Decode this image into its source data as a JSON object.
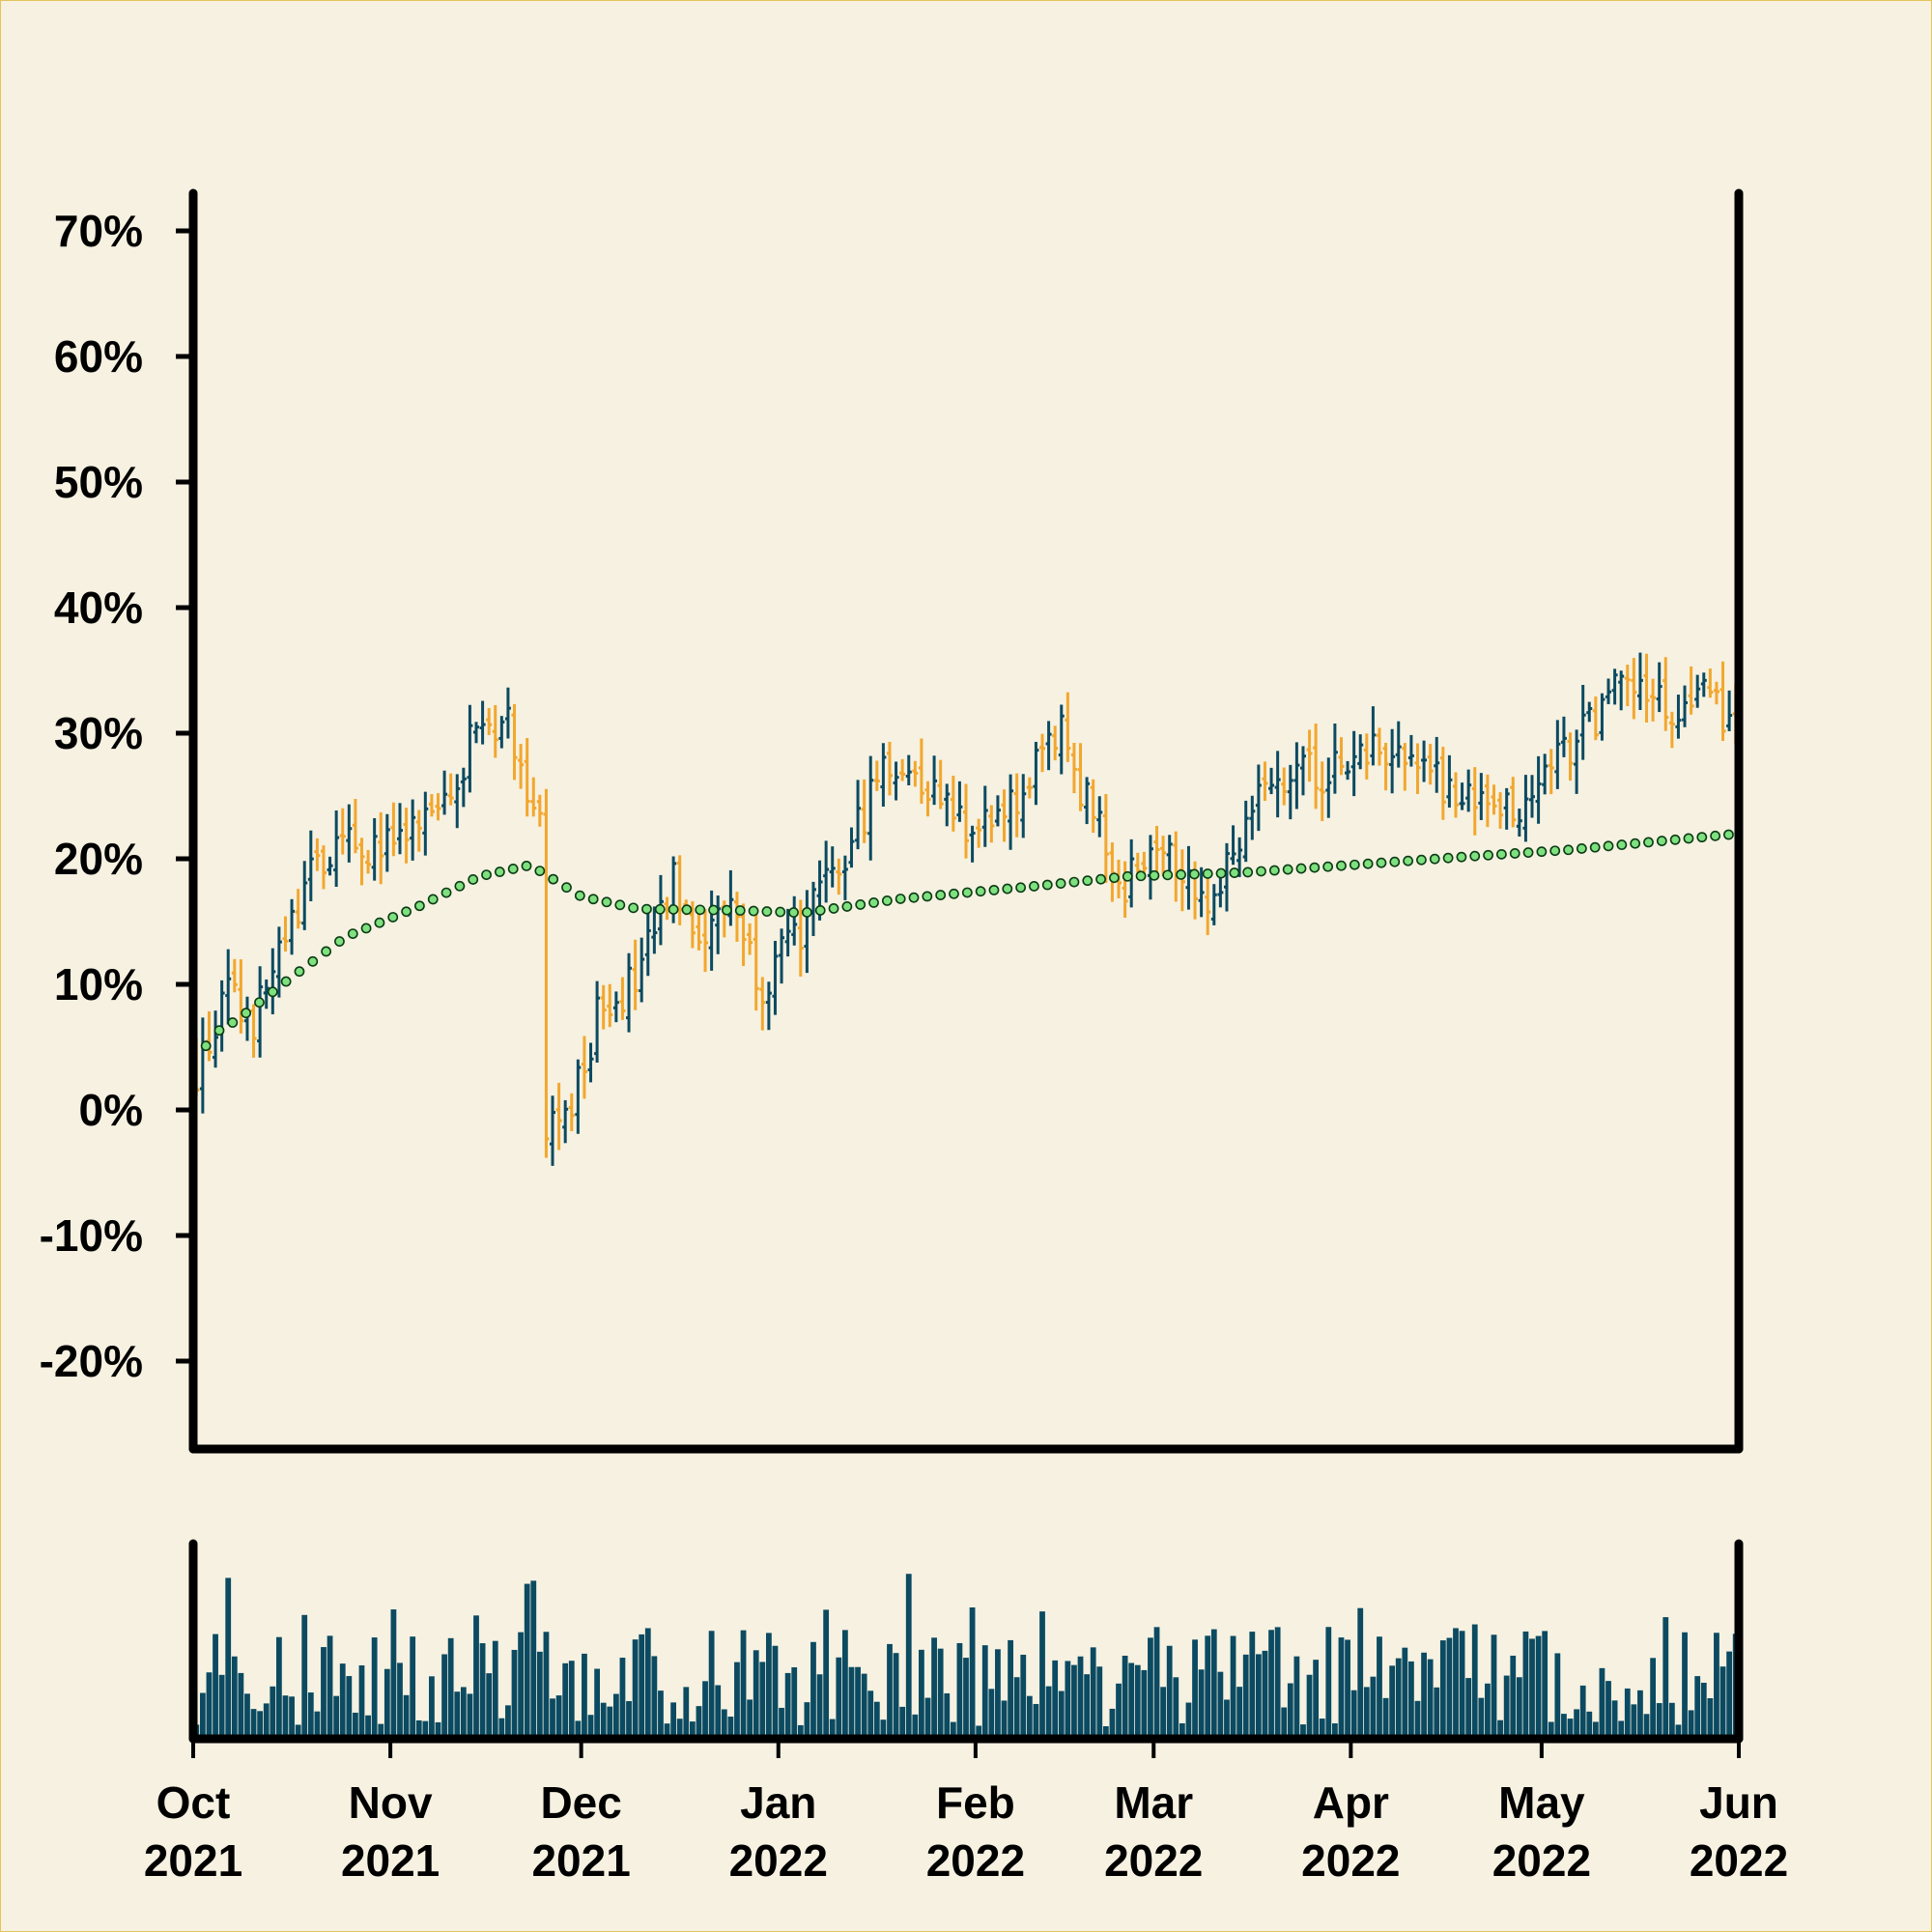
{
  "colors": {
    "background": "#f6f1e1",
    "up": "#0b4a61",
    "down": "#f2a72e",
    "volume": "#0b4a61",
    "ma_fill": "#7ee07e",
    "ma_stroke": "#0b3a14",
    "axis": "#000000"
  },
  "chart_data": {
    "type": "ohlc",
    "title": "",
    "ylabel": "",
    "xlabel": "",
    "ylim": [
      -0.27,
      0.73
    ],
    "y_ticks": [
      {
        "value": 0.7,
        "label": "70%"
      },
      {
        "value": 0.6,
        "label": "60%"
      },
      {
        "value": 0.5,
        "label": "50%"
      },
      {
        "value": 0.4,
        "label": "40%"
      },
      {
        "value": 0.3,
        "label": "30%"
      },
      {
        "value": 0.2,
        "label": "20%"
      },
      {
        "value": 0.1,
        "label": "10%"
      },
      {
        "value": 0.0,
        "label": "0%"
      },
      {
        "value": -0.1,
        "label": "-10%"
      },
      {
        "value": -0.2,
        "label": "-20%"
      }
    ],
    "x_range": [
      "2021-10-01",
      "2022-06-01"
    ],
    "x_ticks": [
      {
        "date": "2021-10-01",
        "month": "Oct",
        "year": "2021"
      },
      {
        "date": "2021-11-01",
        "month": "Nov",
        "year": "2021"
      },
      {
        "date": "2021-12-01",
        "month": "Dec",
        "year": "2021"
      },
      {
        "date": "2022-01-01",
        "month": "Jan",
        "year": "2022"
      },
      {
        "date": "2022-02-01",
        "month": "Feb",
        "year": "2022"
      },
      {
        "date": "2022-03-01",
        "month": "Mar",
        "year": "2022"
      },
      {
        "date": "2022-04-01",
        "month": "Apr",
        "year": "2022"
      },
      {
        "date": "2022-05-01",
        "month": "May",
        "year": "2022"
      },
      {
        "date": "2022-06-01",
        "month": "Jun",
        "year": "2022"
      }
    ],
    "close_anchors": [
      [
        "2021-10-01",
        0.03
      ],
      [
        "2021-10-06",
        0.09
      ],
      [
        "2021-10-10",
        0.07
      ],
      [
        "2021-10-14",
        0.12
      ],
      [
        "2021-10-19",
        0.19
      ],
      [
        "2021-10-25",
        0.21
      ],
      [
        "2021-11-02",
        0.21
      ],
      [
        "2021-11-07",
        0.23
      ],
      [
        "2021-11-15",
        0.31
      ],
      [
        "2021-11-19",
        0.31
      ],
      [
        "2021-11-24",
        0.23
      ],
      [
        "2021-11-25",
        -0.02
      ],
      [
        "2021-11-29",
        0.0
      ],
      [
        "2021-12-04",
        0.09
      ],
      [
        "2021-12-09",
        0.1
      ],
      [
        "2021-12-15",
        0.18
      ],
      [
        "2021-12-20",
        0.14
      ],
      [
        "2021-12-24",
        0.17
      ],
      [
        "2021-12-29",
        0.1
      ],
      [
        "2022-01-05",
        0.15
      ],
      [
        "2022-01-12",
        0.21
      ],
      [
        "2022-01-17",
        0.28
      ],
      [
        "2022-01-24",
        0.26
      ],
      [
        "2022-02-01",
        0.22
      ],
      [
        "2022-02-06",
        0.24
      ],
      [
        "2022-02-14",
        0.3
      ],
      [
        "2022-02-20",
        0.22
      ],
      [
        "2022-02-24",
        0.18
      ],
      [
        "2022-03-01",
        0.22
      ],
      [
        "2022-03-06",
        0.19
      ],
      [
        "2022-03-09",
        0.16
      ],
      [
        "2022-03-14",
        0.22
      ],
      [
        "2022-03-20",
        0.27
      ],
      [
        "2022-03-28",
        0.27
      ],
      [
        "2022-04-05",
        0.29
      ],
      [
        "2022-04-10",
        0.28
      ],
      [
        "2022-04-20",
        0.24
      ],
      [
        "2022-04-26",
        0.24
      ],
      [
        "2022-05-03",
        0.28
      ],
      [
        "2022-05-12",
        0.33
      ],
      [
        "2022-05-16",
        0.34
      ],
      [
        "2022-05-22",
        0.31
      ],
      [
        "2022-05-27",
        0.33
      ],
      [
        "2022-06-01",
        0.3
      ]
    ],
    "moving_average": [
      [
        "2021-10-01",
        0.033
      ],
      [
        "2021-10-04",
        0.06
      ],
      [
        "2021-10-08",
        0.072
      ],
      [
        "2021-10-15",
        0.1
      ],
      [
        "2021-10-25",
        0.138
      ],
      [
        "2021-11-05",
        0.161
      ],
      [
        "2021-11-15",
        0.186
      ],
      [
        "2021-11-23",
        0.195
      ],
      [
        "2021-12-01",
        0.17
      ],
      [
        "2021-12-10",
        0.16
      ],
      [
        "2021-12-25",
        0.159
      ],
      [
        "2022-01-05",
        0.157
      ],
      [
        "2022-01-20",
        0.168
      ],
      [
        "2022-02-10",
        0.178
      ],
      [
        "2022-02-25",
        0.186
      ],
      [
        "2022-03-15",
        0.189
      ],
      [
        "2022-04-01",
        0.195
      ],
      [
        "2022-04-20",
        0.202
      ],
      [
        "2022-05-05",
        0.207
      ],
      [
        "2022-06-01",
        0.22
      ]
    ],
    "volume": {
      "unit": "relative",
      "min": 0.0,
      "max": 1.0
    }
  }
}
